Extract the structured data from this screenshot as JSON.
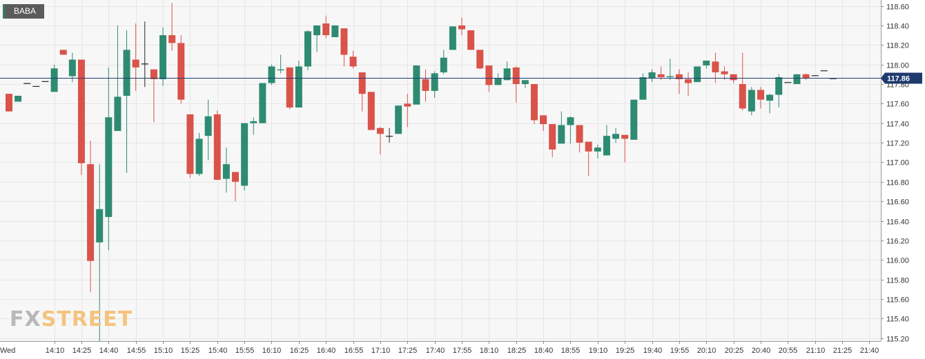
{
  "ticker": "BABA",
  "logo": {
    "part1": "FX",
    "part2": "STREET"
  },
  "colors": {
    "up": "#2e8b72",
    "down": "#d9534a",
    "grid": "#e6e6e6",
    "axis": "#333333",
    "current_line": "#1f3a6e",
    "label_bg": "#1f3a6e"
  },
  "chart_data": {
    "type": "candlestick",
    "symbol": "BABA",
    "current_price": 117.86,
    "current_price_label": "117.86",
    "ylim": [
      115.17,
      118.66
    ],
    "y_ticks": [
      "118.60",
      "118.40",
      "118.20",
      "118.00",
      "117.80",
      "117.60",
      "117.40",
      "117.20",
      "117.00",
      "116.80",
      "116.60",
      "116.40",
      "116.20",
      "116.00",
      "115.80",
      "115.60",
      "115.40",
      "115.20"
    ],
    "x_ticks": [
      {
        "label": "Wed",
        "i": -1.5
      },
      {
        "label": "14:10",
        "i": 5
      },
      {
        "label": "14:25",
        "i": 8
      },
      {
        "label": "14:40",
        "i": 11
      },
      {
        "label": "14:55",
        "i": 14
      },
      {
        "label": "15:10",
        "i": 17
      },
      {
        "label": "15:25",
        "i": 20
      },
      {
        "label": "15:40",
        "i": 23
      },
      {
        "label": "15:55",
        "i": 26
      },
      {
        "label": "16:10",
        "i": 29
      },
      {
        "label": "16:25",
        "i": 32
      },
      {
        "label": "16:40",
        "i": 35
      },
      {
        "label": "16:55",
        "i": 38
      },
      {
        "label": "17:10",
        "i": 41
      },
      {
        "label": "17:25",
        "i": 44
      },
      {
        "label": "17:40",
        "i": 47
      },
      {
        "label": "17:55",
        "i": 50
      },
      {
        "label": "18:10",
        "i": 53
      },
      {
        "label": "18:25",
        "i": 56
      },
      {
        "label": "18:40",
        "i": 59
      },
      {
        "label": "18:55",
        "i": 62
      },
      {
        "label": "19:10",
        "i": 65
      },
      {
        "label": "19:25",
        "i": 68
      },
      {
        "label": "19:40",
        "i": 71
      },
      {
        "label": "19:55",
        "i": 74
      },
      {
        "label": "20:10",
        "i": 77
      },
      {
        "label": "20:25",
        "i": 80
      },
      {
        "label": "20:40",
        "i": 83
      },
      {
        "label": "20:55",
        "i": 86
      },
      {
        "label": "21:10",
        "i": 89
      },
      {
        "label": "21:25",
        "i": 92
      },
      {
        "label": "21:40",
        "i": 95
      }
    ],
    "candles": [
      {
        "o": 117.7,
        "h": 117.7,
        "l": 117.52,
        "c": 117.52
      },
      {
        "o": 117.62,
        "h": 117.68,
        "l": 117.62,
        "c": 117.68
      },
      {
        "o": 117.81,
        "h": 117.81,
        "l": 117.81,
        "c": 117.81
      },
      {
        "o": 117.78,
        "h": 117.78,
        "l": 117.78,
        "c": 117.78
      },
      {
        "o": 117.83,
        "h": 117.83,
        "l": 117.83,
        "c": 117.83
      },
      {
        "o": 117.72,
        "h": 118.0,
        "l": 117.72,
        "c": 117.96
      },
      {
        "o": 118.15,
        "h": 118.15,
        "l": 118.1,
        "c": 118.1
      },
      {
        "o": 117.88,
        "h": 118.12,
        "l": 117.82,
        "c": 118.05
      },
      {
        "o": 118.05,
        "h": 118.05,
        "l": 116.87,
        "c": 116.99
      },
      {
        "o": 116.98,
        "h": 117.22,
        "l": 115.67,
        "c": 115.99
      },
      {
        "o": 116.18,
        "h": 116.98,
        "l": 115.17,
        "c": 116.52
      },
      {
        "o": 116.44,
        "h": 117.97,
        "l": 116.1,
        "c": 117.46
      },
      {
        "o": 117.32,
        "h": 118.4,
        "l": 117.32,
        "c": 117.67
      },
      {
        "o": 117.68,
        "h": 118.35,
        "l": 116.89,
        "c": 118.15
      },
      {
        "o": 118.05,
        "h": 118.42,
        "l": 117.73,
        "c": 117.97
      },
      {
        "o": 118.01,
        "h": 118.44,
        "l": 117.77,
        "c": 118.01
      },
      {
        "o": 117.95,
        "h": 117.95,
        "l": 117.41,
        "c": 117.85
      },
      {
        "o": 117.85,
        "h": 118.38,
        "l": 117.78,
        "c": 118.3
      },
      {
        "o": 118.3,
        "h": 118.63,
        "l": 118.14,
        "c": 118.22
      },
      {
        "o": 118.22,
        "h": 118.3,
        "l": 117.6,
        "c": 117.64
      },
      {
        "o": 117.49,
        "h": 117.49,
        "l": 116.84,
        "c": 116.88
      },
      {
        "o": 116.88,
        "h": 117.3,
        "l": 116.86,
        "c": 117.24
      },
      {
        "o": 117.27,
        "h": 117.64,
        "l": 117.02,
        "c": 117.47
      },
      {
        "o": 117.49,
        "h": 117.53,
        "l": 116.82,
        "c": 116.82
      },
      {
        "o": 116.83,
        "h": 117.15,
        "l": 116.69,
        "c": 116.98
      },
      {
        "o": 116.9,
        "h": 116.9,
        "l": 116.6,
        "c": 116.8
      },
      {
        "o": 116.76,
        "h": 117.4,
        "l": 116.71,
        "c": 117.4
      },
      {
        "o": 117.4,
        "h": 117.46,
        "l": 117.28,
        "c": 117.42
      },
      {
        "o": 117.4,
        "h": 117.8,
        "l": 117.4,
        "c": 117.81
      },
      {
        "o": 117.81,
        "h": 118.0,
        "l": 117.79,
        "c": 117.98
      },
      {
        "o": 117.94,
        "h": 118.1,
        "l": 117.91,
        "c": 117.95
      },
      {
        "o": 117.97,
        "h": 117.97,
        "l": 117.54,
        "c": 117.56
      },
      {
        "o": 117.56,
        "h": 118.04,
        "l": 117.56,
        "c": 117.98
      },
      {
        "o": 117.98,
        "h": 118.35,
        "l": 117.94,
        "c": 118.34
      },
      {
        "o": 118.3,
        "h": 118.4,
        "l": 118.13,
        "c": 118.4
      },
      {
        "o": 118.42,
        "h": 118.5,
        "l": 118.27,
        "c": 118.3
      },
      {
        "o": 118.28,
        "h": 118.4,
        "l": 118.28,
        "c": 118.4
      },
      {
        "o": 118.37,
        "h": 118.37,
        "l": 117.98,
        "c": 118.1
      },
      {
        "o": 118.08,
        "h": 118.14,
        "l": 117.96,
        "c": 117.98
      },
      {
        "o": 117.92,
        "h": 117.92,
        "l": 117.52,
        "c": 117.7
      },
      {
        "o": 117.72,
        "h": 117.72,
        "l": 117.33,
        "c": 117.33
      },
      {
        "o": 117.35,
        "h": 117.36,
        "l": 117.08,
        "c": 117.29
      },
      {
        "o": 117.27,
        "h": 117.35,
        "l": 117.2,
        "c": 117.27
      },
      {
        "o": 117.29,
        "h": 117.58,
        "l": 117.29,
        "c": 117.58
      },
      {
        "o": 117.6,
        "h": 117.7,
        "l": 117.36,
        "c": 117.57
      },
      {
        "o": 117.59,
        "h": 117.99,
        "l": 117.59,
        "c": 117.99
      },
      {
        "o": 117.85,
        "h": 117.95,
        "l": 117.62,
        "c": 117.73
      },
      {
        "o": 117.73,
        "h": 117.93,
        "l": 117.66,
        "c": 117.91
      },
      {
        "o": 117.92,
        "h": 118.15,
        "l": 117.9,
        "c": 118.07
      },
      {
        "o": 118.15,
        "h": 118.39,
        "l": 118.15,
        "c": 118.39
      },
      {
        "o": 118.4,
        "h": 118.48,
        "l": 118.3,
        "c": 118.36
      },
      {
        "o": 118.35,
        "h": 118.35,
        "l": 118.15,
        "c": 118.15
      },
      {
        "o": 118.15,
        "h": 118.15,
        "l": 117.95,
        "c": 117.96
      },
      {
        "o": 117.99,
        "h": 117.99,
        "l": 117.72,
        "c": 117.79
      },
      {
        "o": 117.79,
        "h": 117.91,
        "l": 117.79,
        "c": 117.86
      },
      {
        "o": 117.84,
        "h": 118.03,
        "l": 117.84,
        "c": 117.96
      },
      {
        "o": 117.97,
        "h": 117.98,
        "l": 117.61,
        "c": 117.8
      },
      {
        "o": 117.8,
        "h": 117.84,
        "l": 117.76,
        "c": 117.84
      },
      {
        "o": 117.8,
        "h": 117.8,
        "l": 117.39,
        "c": 117.43
      },
      {
        "o": 117.48,
        "h": 117.48,
        "l": 117.32,
        "c": 117.39
      },
      {
        "o": 117.39,
        "h": 117.39,
        "l": 117.05,
        "c": 117.13
      },
      {
        "o": 117.19,
        "h": 117.52,
        "l": 117.19,
        "c": 117.38
      },
      {
        "o": 117.38,
        "h": 117.47,
        "l": 117.19,
        "c": 117.46
      },
      {
        "o": 117.38,
        "h": 117.38,
        "l": 117.1,
        "c": 117.2
      },
      {
        "o": 117.21,
        "h": 117.21,
        "l": 116.86,
        "c": 117.11
      },
      {
        "o": 117.11,
        "h": 117.18,
        "l": 117.04,
        "c": 117.15
      },
      {
        "o": 117.07,
        "h": 117.38,
        "l": 117.07,
        "c": 117.27
      },
      {
        "o": 117.24,
        "h": 117.35,
        "l": 117.2,
        "c": 117.29
      },
      {
        "o": 117.28,
        "h": 117.28,
        "l": 117.0,
        "c": 117.24
      },
      {
        "o": 117.23,
        "h": 117.64,
        "l": 117.23,
        "c": 117.64
      },
      {
        "o": 117.64,
        "h": 117.91,
        "l": 117.64,
        "c": 117.87
      },
      {
        "o": 117.86,
        "h": 117.95,
        "l": 117.82,
        "c": 117.92
      },
      {
        "o": 117.9,
        "h": 117.98,
        "l": 117.84,
        "c": 117.87
      },
      {
        "o": 117.87,
        "h": 118.06,
        "l": 117.84,
        "c": 117.88
      },
      {
        "o": 117.9,
        "h": 117.95,
        "l": 117.7,
        "c": 117.85
      },
      {
        "o": 117.85,
        "h": 117.92,
        "l": 117.68,
        "c": 117.81
      },
      {
        "o": 117.82,
        "h": 117.98,
        "l": 117.82,
        "c": 117.98
      },
      {
        "o": 117.99,
        "h": 118.04,
        "l": 117.96,
        "c": 118.04
      },
      {
        "o": 118.03,
        "h": 118.12,
        "l": 117.81,
        "c": 117.92
      },
      {
        "o": 117.93,
        "h": 117.98,
        "l": 117.84,
        "c": 117.9
      },
      {
        "o": 117.9,
        "h": 117.9,
        "l": 117.81,
        "c": 117.84
      },
      {
        "o": 117.8,
        "h": 118.12,
        "l": 117.53,
        "c": 117.55
      },
      {
        "o": 117.52,
        "h": 117.77,
        "l": 117.48,
        "c": 117.74
      },
      {
        "o": 117.74,
        "h": 117.77,
        "l": 117.55,
        "c": 117.64
      },
      {
        "o": 117.63,
        "h": 117.7,
        "l": 117.5,
        "c": 117.69
      },
      {
        "o": 117.69,
        "h": 117.9,
        "l": 117.56,
        "c": 117.87
      },
      {
        "o": 117.82,
        "h": 117.82,
        "l": 117.82,
        "c": 117.82
      },
      {
        "o": 117.8,
        "h": 117.9,
        "l": 117.8,
        "c": 117.9
      },
      {
        "o": 117.9,
        "h": 117.91,
        "l": 117.84,
        "c": 117.86
      },
      {
        "o": 117.89,
        "h": 117.89,
        "l": 117.89,
        "c": 117.89
      },
      {
        "o": 117.94,
        "h": 117.94,
        "l": 117.94,
        "c": 117.94
      },
      {
        "o": 117.86,
        "h": 117.86,
        "l": 117.86,
        "c": 117.86
      }
    ]
  }
}
